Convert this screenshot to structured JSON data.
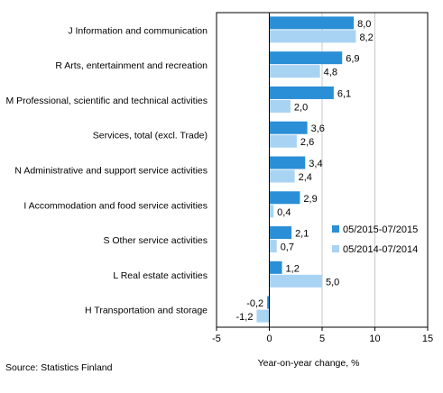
{
  "chart_data": {
    "type": "bar",
    "orientation": "horizontal",
    "categories": [
      "J Information and communication",
      "R Arts, entertainment and recreation",
      "M Professional, scientific and technical activities",
      "Services, total (excl. Trade)",
      "N Administrative and support service activities",
      "I Accommodation and food service activities",
      "S Other service activities",
      "L Real estate activities",
      "H Transportation and storage"
    ],
    "series": [
      {
        "name": "05/2015-07/2015",
        "color": "#2a8fd6",
        "values": [
          8.0,
          6.9,
          6.1,
          3.6,
          3.4,
          2.9,
          2.1,
          1.2,
          -0.2
        ],
        "labels": [
          "8,0",
          "6,9",
          "6,1",
          "3,6",
          "3,4",
          "2,9",
          "2,1",
          "1,2",
          "-0,2"
        ]
      },
      {
        "name": "05/2014-07/2014",
        "color": "#a9d3f3",
        "values": [
          8.2,
          4.8,
          2.0,
          2.6,
          2.4,
          0.4,
          0.7,
          5.0,
          -1.2
        ],
        "labels": [
          "8,2",
          "4,8",
          "2,0",
          "2,6",
          "2,4",
          "0,4",
          "0,7",
          "5,0",
          "-1,2"
        ]
      }
    ],
    "xlabel": "Year-on-year change, %",
    "xlim": [
      -5,
      15
    ],
    "xticks": [
      -5,
      0,
      5,
      10,
      15
    ],
    "xtick_labels": [
      "-5",
      "0",
      "5",
      "10",
      "15"
    ],
    "grid": "vertical",
    "legend": "right"
  },
  "source": "Source:  Statistics Finland"
}
